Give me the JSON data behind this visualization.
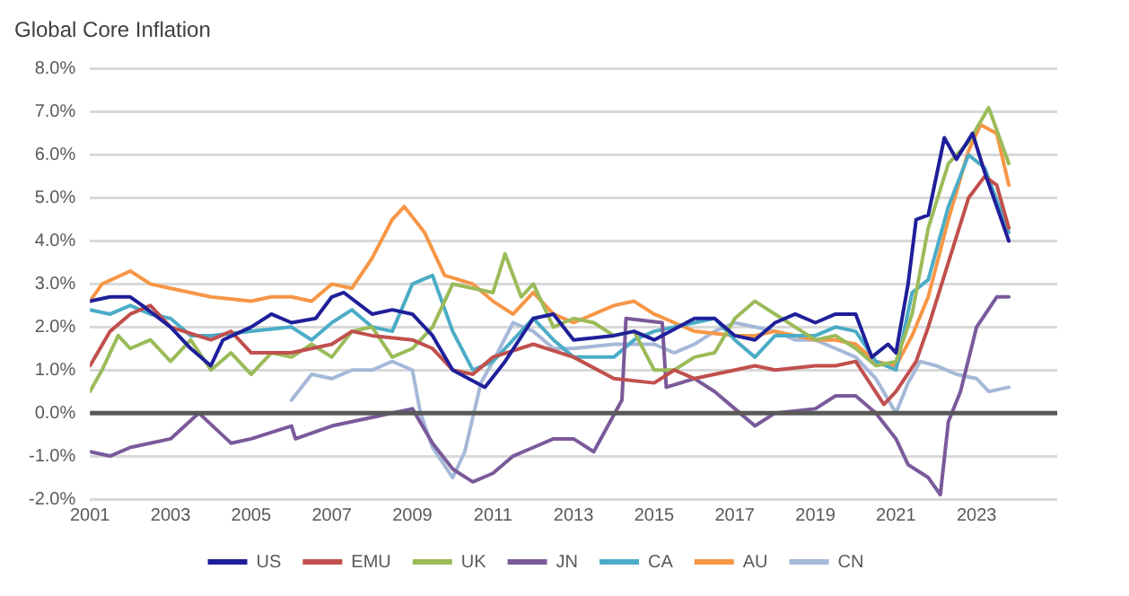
{
  "chart_data": {
    "type": "line",
    "title": "Global Core Inflation",
    "xlim": [
      2001,
      2025
    ],
    "xticks": [
      2001,
      2003,
      2005,
      2007,
      2009,
      2011,
      2013,
      2015,
      2017,
      2019,
      2021,
      2023
    ],
    "ylim": [
      -2,
      8
    ],
    "yticks": [
      {
        "value": -2,
        "label": "-2.0%"
      },
      {
        "value": -1,
        "label": "-1.0%"
      },
      {
        "value": 0,
        "label": "0.0%"
      },
      {
        "value": 1,
        "label": "1.0%"
      },
      {
        "value": 2,
        "label": "2.0%"
      },
      {
        "value": 3,
        "label": "3.0%"
      },
      {
        "value": 4,
        "label": "4.0%"
      },
      {
        "value": 5,
        "label": "5.0%"
      },
      {
        "value": 6,
        "label": "6.0%"
      },
      {
        "value": 7,
        "label": "7.0%"
      },
      {
        "value": 8,
        "label": "8.0%"
      }
    ],
    "grid": "y",
    "legend": "bottom",
    "marker": "none",
    "line_style": "solid",
    "ref_lines": [
      {
        "axis": "y",
        "value": 0,
        "color": "#595959"
      }
    ],
    "series": [
      {
        "name": "US",
        "color": "#1f1f9a",
        "x": [
          2001,
          2001.5,
          2002,
          2002.3,
          2003,
          2003.5,
          2004,
          2004.3,
          2005,
          2005.5,
          2006,
          2006.6,
          2007,
          2007.3,
          2008,
          2008.5,
          2009,
          2009.5,
          2010,
          2010.8,
          2011.3,
          2012,
          2012.5,
          2013,
          2014,
          2014.5,
          2015,
          2016,
          2016.5,
          2017,
          2017.5,
          2018,
          2018.5,
          2019,
          2019.5,
          2020,
          2020.4,
          2020.8,
          2021,
          2021.3,
          2021.5,
          2021.8,
          2022.2,
          2022.5,
          2022.9,
          2023.2,
          2023.5,
          2023.8
        ],
        "values": [
          2.6,
          2.7,
          2.7,
          2.5,
          2.0,
          1.5,
          1.1,
          1.7,
          2.0,
          2.3,
          2.1,
          2.2,
          2.7,
          2.8,
          2.3,
          2.4,
          2.3,
          1.8,
          1.0,
          0.6,
          1.2,
          2.2,
          2.3,
          1.7,
          1.8,
          1.9,
          1.7,
          2.2,
          2.2,
          1.8,
          1.7,
          2.1,
          2.3,
          2.1,
          2.3,
          2.3,
          1.3,
          1.6,
          1.4,
          3.0,
          4.5,
          4.6,
          6.4,
          5.9,
          6.5,
          5.6,
          4.8,
          4.0
        ]
      },
      {
        "name": "EMU",
        "color": "#c0504d",
        "x": [
          2001,
          2001.5,
          2002,
          2002.5,
          2003,
          2004,
          2004.5,
          2005,
          2006,
          2007,
          2007.5,
          2008,
          2009,
          2009.5,
          2010,
          2010.5,
          2011,
          2012,
          2013,
          2014,
          2015,
          2015.5,
          2016,
          2017,
          2017.5,
          2018,
          2019,
          2019.5,
          2020,
          2020.7,
          2021,
          2021.5,
          2021.8,
          2022.3,
          2022.8,
          2023.2,
          2023.5,
          2023.8
        ],
        "values": [
          1.1,
          1.9,
          2.3,
          2.5,
          2.0,
          1.7,
          1.9,
          1.4,
          1.4,
          1.6,
          1.9,
          1.8,
          1.7,
          1.5,
          1.0,
          0.9,
          1.3,
          1.6,
          1.3,
          0.8,
          0.7,
          1.0,
          0.8,
          1.0,
          1.1,
          1.0,
          1.1,
          1.1,
          1.2,
          0.2,
          0.5,
          1.2,
          2.0,
          3.5,
          5.0,
          5.5,
          5.3,
          4.3
        ]
      },
      {
        "name": "UK",
        "color": "#9bbb59",
        "x": [
          2001,
          2001.3,
          2001.7,
          2002,
          2002.5,
          2003,
          2003.5,
          2004,
          2004.5,
          2005,
          2005.5,
          2006,
          2006.5,
          2007,
          2007.5,
          2008,
          2008.5,
          2009,
          2009.5,
          2010,
          2010.5,
          2011,
          2011.3,
          2011.7,
          2012,
          2012.5,
          2013,
          2013.5,
          2014,
          2014.5,
          2015,
          2015.5,
          2016,
          2016.5,
          2017,
          2017.5,
          2018,
          2018.5,
          2019,
          2019.5,
          2020,
          2020.5,
          2021,
          2021.4,
          2021.8,
          2022.3,
          2022.8,
          2023.3,
          2023.8
        ],
        "values": [
          0.5,
          1.0,
          1.8,
          1.5,
          1.7,
          1.2,
          1.7,
          1.0,
          1.4,
          0.9,
          1.4,
          1.3,
          1.6,
          1.3,
          1.9,
          2.0,
          1.3,
          1.5,
          2.0,
          3.0,
          2.9,
          2.8,
          3.7,
          2.7,
          3.0,
          2.0,
          2.2,
          2.1,
          1.8,
          1.9,
          1.0,
          1.0,
          1.3,
          1.4,
          2.2,
          2.6,
          2.3,
          2.0,
          1.7,
          1.8,
          1.5,
          1.1,
          1.2,
          2.3,
          4.3,
          5.8,
          6.3,
          7.1,
          5.8
        ]
      },
      {
        "name": "JN",
        "color": "#7a5a9a",
        "x": [
          2001,
          2001.5,
          2002,
          2003,
          2003.7,
          2004.5,
          2005,
          2006,
          2006.1,
          2007,
          2008,
          2009,
          2009.5,
          2010,
          2010.5,
          2011,
          2011.5,
          2012,
          2012.5,
          2013,
          2013.5,
          2014.2,
          2014.3,
          2015.2,
          2015.3,
          2016,
          2016.5,
          2017,
          2017.5,
          2018,
          2019,
          2019.5,
          2020,
          2020.5,
          2021,
          2021.3,
          2021.8,
          2022.1,
          2022.3,
          2022.6,
          2023,
          2023.5,
          2023.8
        ],
        "values": [
          -0.9,
          -1.0,
          -0.8,
          -0.6,
          0.0,
          -0.7,
          -0.6,
          -0.3,
          -0.6,
          -0.3,
          -0.1,
          0.1,
          -0.7,
          -1.3,
          -1.6,
          -1.4,
          -1.0,
          -0.8,
          -0.6,
          -0.6,
          -0.9,
          0.3,
          2.2,
          2.1,
          0.6,
          0.8,
          0.5,
          0.1,
          -0.3,
          0.0,
          0.1,
          0.4,
          0.4,
          0.0,
          -0.6,
          -1.2,
          -1.5,
          -1.9,
          -0.2,
          0.5,
          2.0,
          2.7,
          2.7
        ]
      },
      {
        "name": "CA",
        "color": "#4bacc6",
        "x": [
          2001,
          2001.5,
          2002,
          2002.5,
          2003,
          2003.5,
          2004,
          2005,
          2006,
          2006.5,
          2007,
          2007.5,
          2008,
          2008.5,
          2009,
          2009.5,
          2010,
          2010.5,
          2011,
          2011.5,
          2012,
          2012.5,
          2013,
          2014,
          2014.5,
          2015,
          2016,
          2016.5,
          2017,
          2017.5,
          2018,
          2018.5,
          2019,
          2019.5,
          2020,
          2020.5,
          2021,
          2021.4,
          2021.8,
          2022.3,
          2022.8,
          2023.2,
          2023.8
        ],
        "values": [
          2.4,
          2.3,
          2.5,
          2.3,
          2.2,
          1.8,
          1.8,
          1.9,
          2.0,
          1.7,
          2.1,
          2.4,
          2.0,
          1.9,
          3.0,
          3.2,
          1.9,
          1.0,
          1.2,
          1.7,
          2.2,
          1.7,
          1.3,
          1.3,
          1.7,
          1.9,
          2.1,
          2.2,
          1.7,
          1.3,
          1.8,
          1.8,
          1.8,
          2.0,
          1.9,
          1.2,
          1.0,
          2.8,
          3.1,
          4.8,
          6.0,
          5.7,
          4.2
        ]
      },
      {
        "name": "AU",
        "color": "#f79646",
        "x": [
          2001,
          2001.3,
          2002,
          2002.5,
          2003,
          2004,
          2005,
          2005.5,
          2006,
          2006.5,
          2007,
          2007.5,
          2008,
          2008.5,
          2008.8,
          2009.3,
          2009.8,
          2010.5,
          2011,
          2011.5,
          2012,
          2012.5,
          2013,
          2014,
          2014.5,
          2015,
          2016,
          2017,
          2017.5,
          2018,
          2019,
          2019.5,
          2020,
          2020.5,
          2021,
          2021.4,
          2021.8,
          2022.3,
          2022.8,
          2023.1,
          2023.5,
          2023.8
        ],
        "values": [
          2.6,
          3.0,
          3.3,
          3.0,
          2.9,
          2.7,
          2.6,
          2.7,
          2.7,
          2.6,
          3.0,
          2.9,
          3.6,
          4.5,
          4.8,
          4.2,
          3.2,
          3.0,
          2.6,
          2.3,
          2.8,
          2.3,
          2.1,
          2.5,
          2.6,
          2.3,
          1.9,
          1.8,
          1.8,
          1.9,
          1.7,
          1.7,
          1.6,
          1.2,
          1.1,
          1.8,
          2.7,
          4.5,
          6.1,
          6.7,
          6.5,
          5.3
        ]
      },
      {
        "name": "CN",
        "color": "#a5b8d8",
        "x": [
          2006,
          2006.5,
          2007,
          2007.5,
          2008,
          2008.5,
          2009,
          2009.2,
          2009.5,
          2010,
          2010.3,
          2010.7,
          2011,
          2011.5,
          2012,
          2012.5,
          2013,
          2014,
          2014.5,
          2015,
          2015.5,
          2016,
          2016.5,
          2017,
          2017.5,
          2018,
          2018.5,
          2019,
          2019.5,
          2020,
          2020.5,
          2021,
          2021.3,
          2021.6,
          2022,
          2022.5,
          2023,
          2023.3,
          2023.8
        ],
        "values": [
          0.3,
          0.9,
          0.8,
          1.0,
          1.0,
          1.2,
          1.0,
          0.0,
          -0.8,
          -1.5,
          -0.9,
          0.7,
          1.2,
          2.1,
          1.9,
          1.5,
          1.5,
          1.6,
          1.6,
          1.6,
          1.4,
          1.6,
          1.9,
          2.1,
          2.0,
          1.9,
          1.7,
          1.7,
          1.5,
          1.3,
          0.8,
          0.0,
          0.7,
          1.2,
          1.1,
          0.9,
          0.8,
          0.5,
          0.6
        ]
      }
    ]
  }
}
